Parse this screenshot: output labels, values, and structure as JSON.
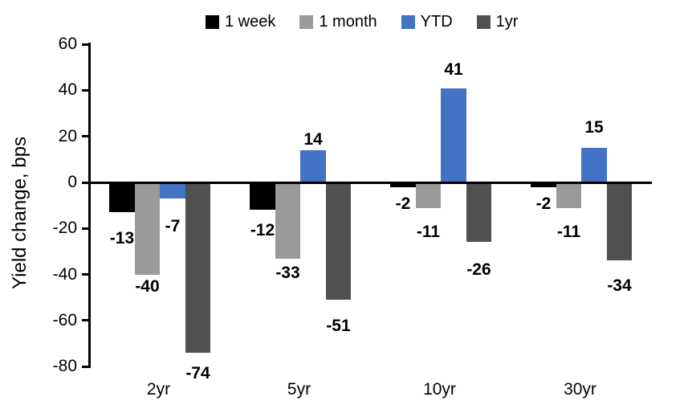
{
  "chart_data": {
    "type": "bar",
    "title": "",
    "ylabel": "Yield change, bps",
    "categories": [
      "2yr",
      "5yr",
      "10yr",
      "30yr"
    ],
    "series": [
      {
        "name": "1 week",
        "color": "#000000",
        "values": [
          -13,
          -12,
          -2,
          -2
        ],
        "label_gaps": [
          22,
          15,
          10,
          10
        ]
      },
      {
        "name": "1 month",
        "color": "#9A9A9A",
        "values": [
          -40,
          -33,
          -11,
          -11
        ],
        "label_gaps": [
          4,
          7,
          19,
          19
        ]
      },
      {
        "name": "YTD",
        "color": "#4472C4",
        "values": [
          -7,
          14,
          41,
          15
        ],
        "label_gaps": [
          24,
          3,
          13,
          15
        ]
      },
      {
        "name": "1yr",
        "color": "#505050",
        "values": [
          -74,
          -51,
          -26,
          -34
        ],
        "label_gaps": [
          15,
          22,
          24,
          21
        ]
      }
    ],
    "y_axis": {
      "min": -80,
      "max": 60,
      "step": 20,
      "ticks": [
        60,
        40,
        20,
        0,
        -20,
        -40,
        -60,
        -80
      ]
    },
    "legend_position": "top",
    "grid": false,
    "data_labels": true
  }
}
